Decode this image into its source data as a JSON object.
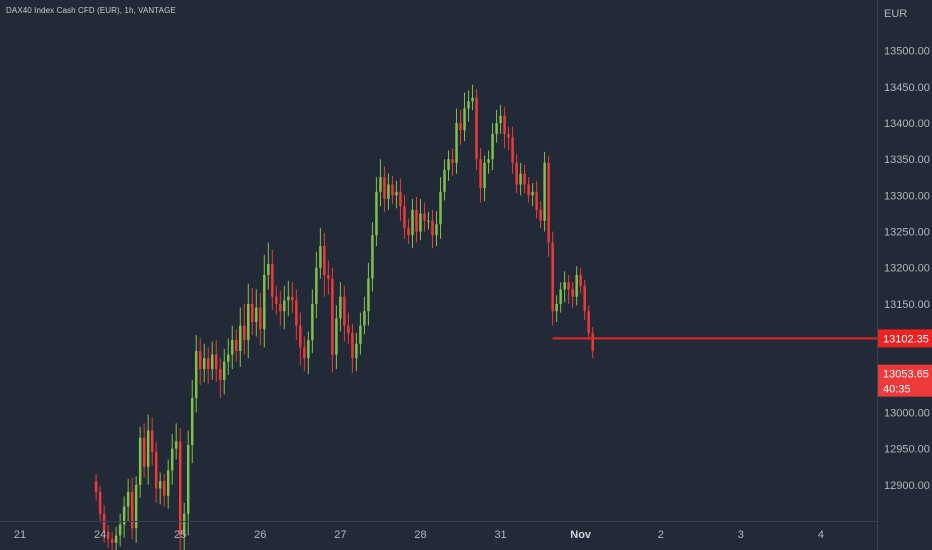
{
  "chart_data": {
    "type": "candlestick",
    "title": "DAX40 Index Cash CFD (EUR), 1h, VANTAGE",
    "currency": "EUR",
    "ylim": [
      12850,
      13570
    ],
    "y_ticks": [
      12900,
      12950,
      13000,
      13050,
      13100,
      13150,
      13200,
      13250,
      13300,
      13350,
      13400,
      13450,
      13500
    ],
    "y_tick_labels": [
      "12900.00",
      "12950.00",
      "13000.00",
      "13050.00",
      "13100.00",
      "13150.00",
      "13200.00",
      "13250.00",
      "13300.00",
      "13350.00",
      "13400.00",
      "13450.00",
      "13500.00"
    ],
    "x_ticks": [
      {
        "label": "21",
        "bar": -19
      },
      {
        "label": "24",
        "bar": 1
      },
      {
        "label": "25",
        "bar": 21
      },
      {
        "label": "26",
        "bar": 41
      },
      {
        "label": "27",
        "bar": 61
      },
      {
        "label": "28",
        "bar": 81
      },
      {
        "label": "31",
        "bar": 101
      },
      {
        "label": "Nov",
        "bar": 121,
        "bold": true
      },
      {
        "label": "2",
        "bar": 141
      },
      {
        "label": "3",
        "bar": 161
      },
      {
        "label": "4",
        "bar": 181
      }
    ],
    "x_range": [
      -24,
      195
    ],
    "grid": false,
    "colors": {
      "up": "#7fc14c",
      "down": "#ee3a3a",
      "price_line": "#ee2222",
      "background": "#232a37",
      "text": "#b2b5be"
    },
    "price_line": {
      "value": 13102.35,
      "label": "13102.35"
    },
    "last_price": {
      "value": 13053.65,
      "label": "13053.65",
      "countdown": "40:35"
    },
    "closes": [
      12890,
      12860,
      12835,
      12825,
      12820,
      12830,
      12845,
      12870,
      12890,
      12840,
      12900,
      12965,
      12925,
      12975,
      12945,
      12895,
      12905,
      12885,
      12920,
      12950,
      12960,
      12830,
      12860,
      12955,
      13020,
      13085,
      13060,
      13075,
      13060,
      13080,
      13060,
      13045,
      13070,
      13080,
      13100,
      13085,
      13120,
      13100,
      13150,
      13125,
      13145,
      13115,
      13190,
      13205,
      13160,
      13150,
      13140,
      13155,
      13160,
      13155,
      13120,
      13090,
      13075,
      13100,
      13150,
      13200,
      13230,
      13190,
      13185,
      13080,
      13130,
      13160,
      13120,
      13110,
      13075,
      13095,
      13120,
      13140,
      13185,
      13245,
      13305,
      13325,
      13295,
      13315,
      13300,
      13305,
      13285,
      13255,
      13245,
      13280,
      13250,
      13275,
      13265,
      13265,
      13245,
      13260,
      13305,
      13335,
      13350,
      13345,
      13400,
      13390,
      13420,
      13430,
      13435,
      13350,
      13310,
      13345,
      13350,
      13385,
      13400,
      13410,
      13385,
      13380,
      13345,
      13315,
      13330,
      13315,
      13300,
      13305,
      13280,
      13265,
      13345,
      13235,
      13140,
      13150,
      13170,
      13180,
      13170,
      13160,
      13190,
      13175,
      13140,
      13110,
      13085
    ],
    "wick_up": [
      10,
      8,
      12,
      9,
      10,
      12,
      15,
      14,
      18,
      20,
      12,
      15,
      20,
      22,
      18,
      14,
      12,
      10,
      15,
      20,
      25,
      18,
      15,
      20,
      25,
      22,
      18,
      20,
      15,
      18,
      20,
      15,
      18,
      22,
      20,
      15,
      25,
      30,
      28,
      22,
      25,
      20,
      28,
      30,
      20,
      15,
      18,
      20,
      22,
      20,
      15,
      18,
      15,
      12,
      20,
      22,
      25,
      18,
      20,
      15,
      18,
      20,
      15,
      18,
      12,
      15,
      18,
      20,
      22,
      18,
      20,
      25,
      15,
      15,
      12,
      15,
      18,
      15,
      12,
      15,
      18,
      20,
      15,
      12,
      15,
      18,
      20,
      15,
      12,
      15,
      20,
      18,
      22,
      15,
      18,
      12,
      15,
      10,
      12,
      15,
      18,
      15,
      12,
      10,
      15,
      12,
      15,
      12,
      10,
      12,
      15,
      12,
      15,
      10,
      15,
      12,
      10,
      15,
      10,
      10,
      12,
      10,
      8,
      8,
      8
    ],
    "wick_dn": [
      12,
      10,
      15,
      12,
      12,
      10,
      15,
      18,
      20,
      15,
      20,
      18,
      15,
      25,
      18,
      20,
      22,
      15,
      18,
      20,
      15,
      20,
      22,
      30,
      25,
      20,
      22,
      18,
      20,
      15,
      18,
      25,
      20,
      18,
      20,
      15,
      22,
      20,
      25,
      18,
      20,
      22,
      25,
      20,
      18,
      15,
      20,
      25,
      22,
      18,
      20,
      25,
      18,
      22,
      18,
      20,
      15,
      30,
      22,
      25,
      20,
      18,
      22,
      15,
      20,
      18,
      15,
      12,
      20,
      18,
      15,
      20,
      18,
      15,
      12,
      18,
      20,
      15,
      12,
      18,
      15,
      12,
      15,
      12,
      18,
      15,
      20,
      12,
      15,
      18,
      15,
      20,
      15,
      18,
      12,
      15,
      20,
      18,
      15,
      15,
      12,
      15,
      20,
      18,
      15,
      12,
      15,
      12,
      10,
      15,
      12,
      10,
      15,
      20,
      20,
      15,
      12,
      18,
      20,
      15,
      12,
      10,
      12,
      10,
      10
    ]
  }
}
